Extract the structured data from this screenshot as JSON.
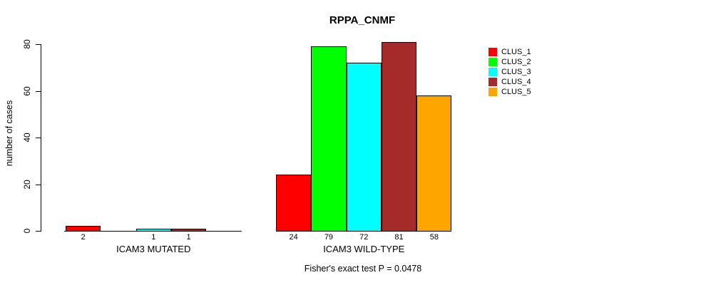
{
  "chart_data": {
    "type": "bar",
    "title": "RPPA_CNMF",
    "ylabel": "number of cases",
    "ylim": [
      0,
      80
    ],
    "yticks": [
      0,
      20,
      40,
      60,
      80
    ],
    "grid": false,
    "legend_position": "right",
    "series": [
      {
        "name": "CLUS_1",
        "color": "#ff0000"
      },
      {
        "name": "CLUS_2",
        "color": "#00ff00"
      },
      {
        "name": "CLUS_3",
        "color": "#00ffff"
      },
      {
        "name": "CLUS_4",
        "color": "#a52a2a"
      },
      {
        "name": "CLUS_5",
        "color": "#ffa500"
      }
    ],
    "groups": [
      {
        "label": "ICAM3 MUTATED",
        "values": [
          2,
          0,
          1,
          1,
          0
        ],
        "value_labels": [
          "2",
          "",
          "1",
          "1",
          ""
        ]
      },
      {
        "label": "ICAM3 WILD-TYPE",
        "values": [
          24,
          79,
          72,
          81,
          58
        ],
        "value_labels": [
          "24",
          "79",
          "72",
          "81",
          "58"
        ]
      }
    ],
    "footnote": "Fisher's exact test P = 0.0478",
    "colors": {
      "axis": "#000000",
      "text": "#000000",
      "background": "#ffffff"
    }
  }
}
